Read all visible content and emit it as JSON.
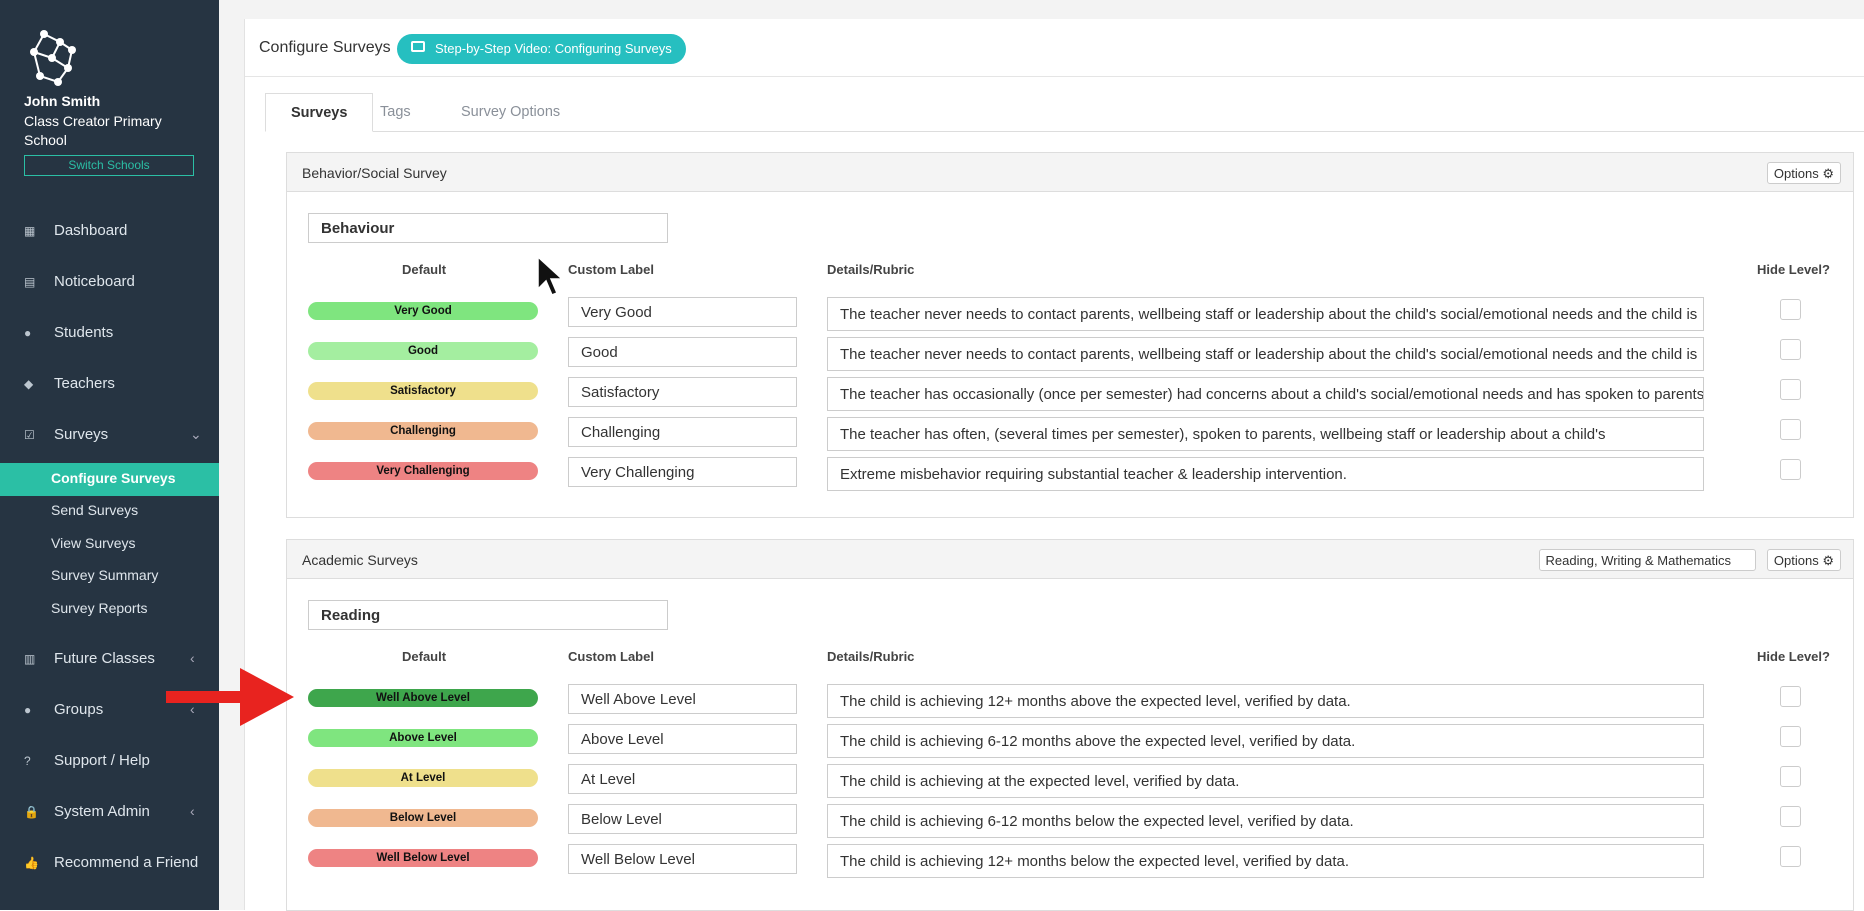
{
  "sidebar": {
    "user_name": "John Smith",
    "school_name": "Class Creator Primary School",
    "switch_button": "Switch Schools",
    "nav_top": [
      {
        "icon": "▦",
        "label": "Dashboard"
      },
      {
        "icon": "▤",
        "label": "Noticeboard"
      },
      {
        "icon": "●",
        "label": "Students"
      },
      {
        "icon": "◆",
        "label": "Teachers"
      },
      {
        "icon": "☑",
        "label": "Surveys",
        "caret": "⌄"
      }
    ],
    "subnav": [
      "Configure Surveys",
      "Send Surveys",
      "View Surveys",
      "Survey Summary",
      "Survey Reports"
    ],
    "nav_bottom": [
      {
        "icon": "▥",
        "label": "Future Classes",
        "caret": "‹"
      },
      {
        "icon": "●",
        "label": "Groups",
        "caret": "‹"
      },
      {
        "icon": "?",
        "label": "Support / Help"
      },
      {
        "icon": "🔒",
        "label": "System Admin",
        "caret": "‹"
      },
      {
        "icon": "👍",
        "label": "Recommend a Friend"
      }
    ]
  },
  "header": {
    "title": "Configure Surveys",
    "video_button": "Step-by-Step Video: Configuring Surveys"
  },
  "tabs": [
    "Surveys",
    "Tags",
    "Survey Options"
  ],
  "surveys": [
    {
      "title": "Behavior/Social Survey",
      "options": "Options ⚙",
      "section": "Behaviour",
      "columns": [
        "Default",
        "Custom Label",
        "Details/Rubric",
        "Hide Level?"
      ],
      "rows": [
        {
          "default": "Very Good",
          "color": "#7fe57f",
          "label": "Very Good",
          "details": "The teacher never needs to contact parents, wellbeing staff or leadership about the child's social/emotional needs and the child is"
        },
        {
          "default": "Good",
          "color": "#a4eea0",
          "label": "Good",
          "details": "The teacher never needs to contact parents, wellbeing staff or leadership about the child's social/emotional needs and the child is"
        },
        {
          "default": "Satisfactory",
          "color": "#efe08c",
          "label": "Satisfactory",
          "details": "The teacher has occasionally (once per semester) had concerns about a child's social/emotional needs and has spoken to parents,"
        },
        {
          "default": "Challenging",
          "color": "#f0b890",
          "label": "Challenging",
          "details": "The teacher has often, (several times per semester), spoken to parents, wellbeing staff or leadership about a child's"
        },
        {
          "default": "Very Challenging",
          "color": "#ee8383",
          "label": "Very Challenging",
          "details": "Extreme misbehavior requiring substantial teacher & leadership intervention."
        }
      ]
    },
    {
      "title": "Academic Surveys",
      "dropdown": "Reading, Writing & Mathematics",
      "options": "Options ⚙",
      "section": "Reading",
      "columns": [
        "Default",
        "Custom Label",
        "Details/Rubric",
        "Hide Level?"
      ],
      "rows": [
        {
          "default": "Well Above Level",
          "color": "#3ea64c",
          "label": "Well Above Level",
          "details": "The child is achieving 12+ months above the expected level, verified by data."
        },
        {
          "default": "Above Level",
          "color": "#7fe57f",
          "label": "Above Level",
          "details": "The child is achieving 6-12 months above the expected level, verified by data."
        },
        {
          "default": "At Level",
          "color": "#efe08c",
          "label": "At Level",
          "details": "The child is achieving at the expected level, verified by data."
        },
        {
          "default": "Below Level",
          "color": "#f0b890",
          "label": "Below Level",
          "details": "The child is achieving 6-12 months below the expected level, verified by data."
        },
        {
          "default": "Well Below Level",
          "color": "#ee8383",
          "label": "Well Below Level",
          "details": "The child is achieving 12+ months below the expected level, verified by data."
        }
      ]
    }
  ]
}
